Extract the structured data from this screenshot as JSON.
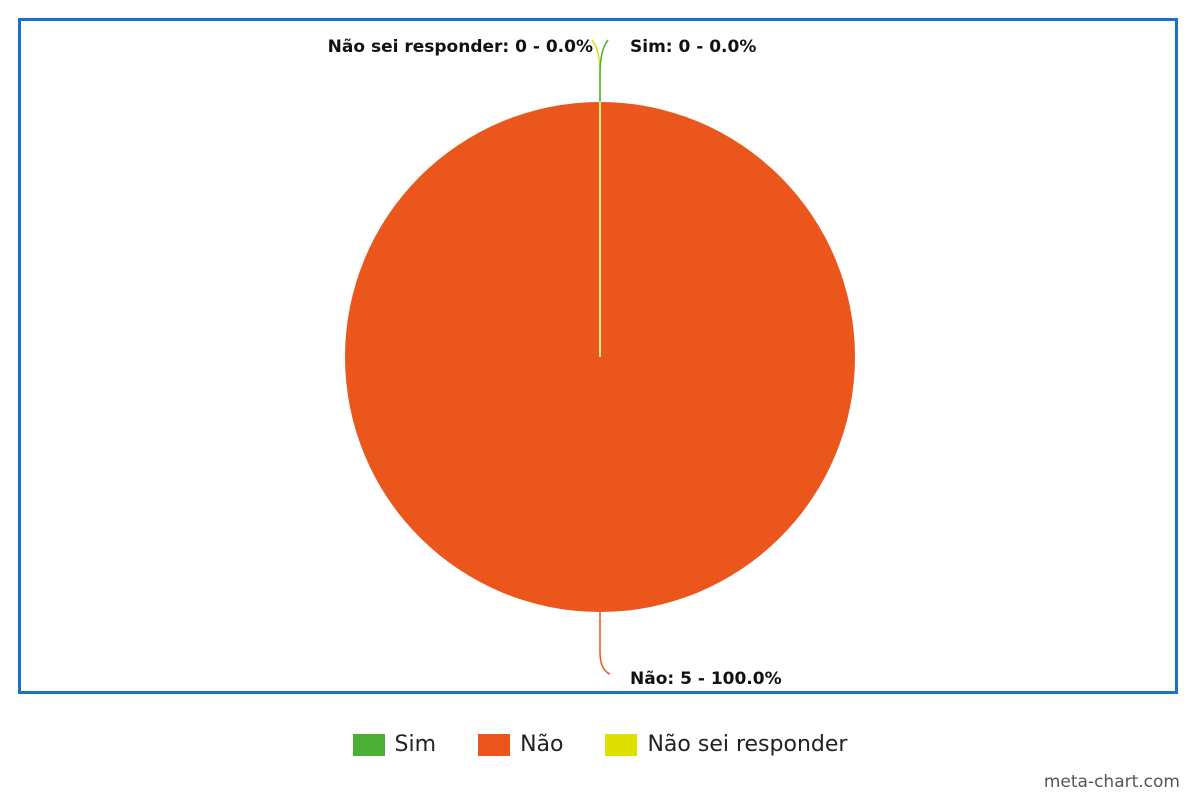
{
  "chart_data": {
    "type": "pie",
    "slices": [
      {
        "name": "Sim",
        "value": 0,
        "percent": 0.0,
        "color": "#4caf35",
        "label": "Sim: 0 - 0.0%"
      },
      {
        "name": "Não",
        "value": 5,
        "percent": 100.0,
        "color": "#eb561c",
        "label": "Não: 5 - 100.0%"
      },
      {
        "name": "Não sei responder",
        "value": 0,
        "percent": 0.0,
        "color": "#dde000",
        "label": "Não sei responder: 0 - 0.0%"
      }
    ],
    "legend_position": "bottom"
  },
  "colors": {
    "frame_border": "#1a73c8"
  },
  "watermark": "meta-chart.com"
}
